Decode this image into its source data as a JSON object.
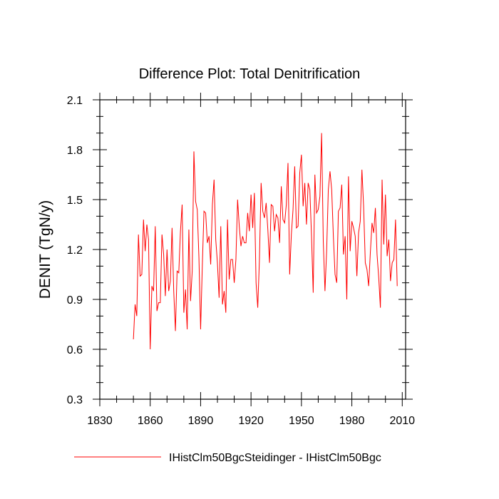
{
  "chart_data": {
    "type": "line",
    "title": "Difference Plot: Total Denitrification",
    "xlabel": "",
    "ylabel": "DENIT  (TgN/y)",
    "xlim": [
      1830,
      2012
    ],
    "ylim": [
      0.3,
      2.1
    ],
    "xticks": [
      1830,
      1860,
      1890,
      1920,
      1950,
      1980,
      2010
    ],
    "yticks": [
      0.3,
      0.6,
      0.9,
      1.2,
      1.5,
      1.8,
      2.1
    ],
    "x_tick_labels": [
      "1830",
      "1860",
      "1890",
      "1920",
      "1950",
      "1980",
      "2010"
    ],
    "y_tick_labels": [
      "0.3",
      "0.6",
      "0.9",
      "1.2",
      "1.5",
      "1.8",
      "2.1"
    ],
    "legend": {
      "position": "bottom"
    },
    "series": [
      {
        "name": "IHistClm50BgcSteidinger - IHistClm50Bgc",
        "color": "#ff0000",
        "x_start": 1850,
        "x_step": 1,
        "values": [
          0.66,
          0.87,
          0.8,
          1.29,
          1.04,
          1.05,
          1.38,
          1.19,
          1.35,
          1.26,
          0.6,
          0.98,
          0.95,
          1.34,
          0.83,
          0.88,
          0.88,
          1.29,
          1.17,
          0.92,
          1.2,
          0.95,
          1.01,
          1.33,
          0.95,
          0.71,
          1.07,
          1.06,
          1.31,
          1.47,
          0.82,
          0.96,
          0.72,
          1.32,
          0.89,
          1.07,
          1.79,
          1.49,
          1.44,
          1.15,
          0.72,
          1.1,
          1.43,
          1.42,
          1.24,
          1.28,
          1.11,
          1.47,
          1.62,
          1.26,
          1.12,
          0.91,
          1.34,
          0.87,
          0.95,
          0.82,
          1.38,
          1.02,
          1.14,
          1.14,
          1.0,
          1.14,
          1.5,
          1.34,
          1.22,
          1.28,
          1.24,
          1.24,
          1.42,
          1.31,
          1.53,
          1.33,
          1.54,
          1.0,
          0.85,
          1.14,
          1.6,
          1.43,
          1.39,
          1.48,
          1.32,
          1.12,
          1.47,
          1.46,
          1.31,
          1.41,
          1.39,
          1.24,
          1.58,
          1.38,
          1.36,
          1.47,
          1.72,
          1.05,
          1.29,
          1.44,
          1.7,
          1.33,
          1.34,
          1.66,
          1.77,
          1.46,
          1.6,
          1.35,
          1.6,
          1.56,
          1.28,
          0.94,
          1.65,
          1.42,
          1.44,
          1.52,
          1.9,
          1.25,
          0.95,
          1.19,
          1.56,
          1.67,
          1.56,
          1.28,
          1.05,
          1.0,
          1.43,
          1.45,
          1.59,
          1.17,
          1.28,
          0.9,
          1.64,
          1.19,
          1.37,
          1.33,
          1.28,
          1.04,
          1.3,
          1.37,
          1.68,
          1.46,
          1.12,
          1.08,
          0.98,
          1.18,
          1.36,
          1.3,
          1.45,
          1.17,
          1.03,
          0.85,
          1.62,
          1.23,
          1.53,
          1.16,
          1.26,
          1.01,
          1.12,
          1.14,
          1.38,
          0.98
        ]
      }
    ]
  }
}
